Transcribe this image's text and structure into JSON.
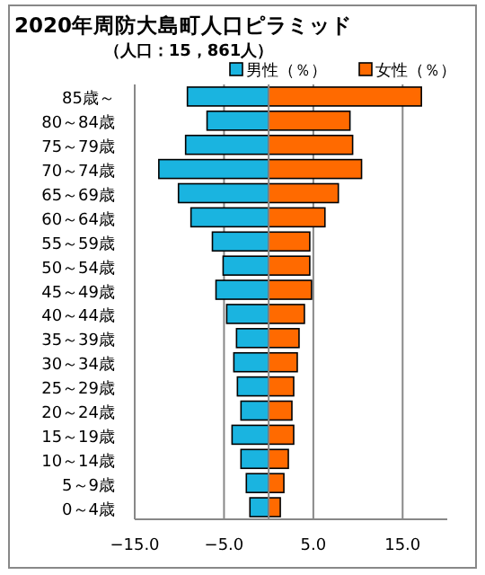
{
  "chart_data": {
    "type": "bar",
    "orientation": "horizontal",
    "stacked": true,
    "title": "2020年周防大島町人口ピラミッド",
    "subtitle": "（人口：15，861人）",
    "categories": [
      "85歳～",
      "80～84歳",
      "75～79歳",
      "70～74歳",
      "65～69歳",
      "60～64歳",
      "55～59歳",
      "50～54歳",
      "45～49歳",
      "40～44歳",
      "35～39歳",
      "30～34歳",
      "25～29歳",
      "20～24歳",
      "15～19歳",
      "10～14歳",
      "5～9歳",
      "0～4歳"
    ],
    "series": [
      {
        "name": "男性（％）",
        "color": "#1ab4e0",
        "values": [
          -9.1,
          -6.9,
          -9.3,
          -12.3,
          -10.1,
          -8.7,
          -6.3,
          -5.1,
          -5.9,
          -4.7,
          -3.6,
          -3.9,
          -3.5,
          -3.1,
          -4.1,
          -3.1,
          -2.5,
          -2.1
        ]
      },
      {
        "name": "女性（％）",
        "color": "#ff6a00",
        "values": [
          17.1,
          9.1,
          9.4,
          10.4,
          7.8,
          6.3,
          4.6,
          4.6,
          4.8,
          4.0,
          3.4,
          3.2,
          2.8,
          2.6,
          2.8,
          2.2,
          1.7,
          1.3
        ]
      }
    ],
    "xlim": [
      -15,
      20
    ],
    "xticks": [
      {
        "value": -15,
        "label": "−15.0"
      },
      {
        "value": -5,
        "label": "−5.0"
      },
      {
        "value": 5,
        "label": "5.0"
      },
      {
        "value": 15,
        "label": "15.0"
      }
    ],
    "grid": "x",
    "legend": "top right"
  }
}
